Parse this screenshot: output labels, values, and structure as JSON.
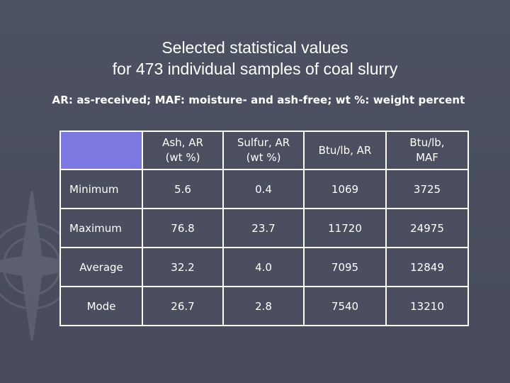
{
  "slide": {
    "title_line1": "Selected statistical values",
    "title_line2": "for 473 individual samples of coal slurry",
    "subtitle": "AR: as-received; MAF: moisture- and ash-free; wt %: weight percent"
  },
  "table": {
    "headers": [
      [
        "Ash, AR",
        "(wt %)"
      ],
      [
        "Sulfur, AR",
        "(wt %)"
      ],
      [
        "Btu/lb, AR",
        ""
      ],
      [
        "Btu/lb,",
        "MAF"
      ]
    ],
    "rows": [
      {
        "label": "Minimum",
        "values": [
          "5.6",
          "0.4",
          "1069",
          "3725"
        ]
      },
      {
        "label": "Maximum",
        "values": [
          "76.8",
          "23.7",
          "11720",
          "24975"
        ]
      },
      {
        "label": "Average",
        "values": [
          "32.2",
          "4.0",
          "7095",
          "12849"
        ]
      },
      {
        "label": "Mode",
        "values": [
          "26.7",
          "2.8",
          "7540",
          "13210"
        ]
      }
    ]
  },
  "colors": {
    "background": "#4b4f5f",
    "corner_cell": "#7c78e2",
    "text": "#ffffff"
  }
}
